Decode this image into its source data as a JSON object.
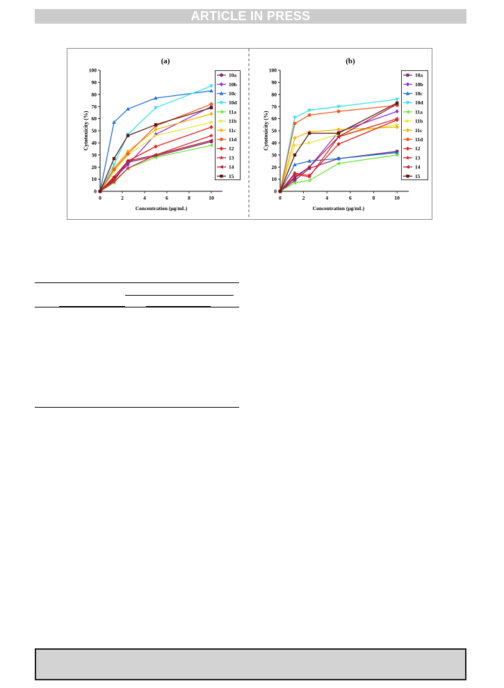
{
  "header": {
    "banner_text": "ARTICLE IN PRESS"
  },
  "chart_data": [
    {
      "type": "line",
      "title": "(a)",
      "xlabel": "Concentration (μg/mL)",
      "ylabel": "Cytotoxicity (%)",
      "x": [
        0,
        1.25,
        2.5,
        5,
        10
      ],
      "xlim": [
        0,
        11
      ],
      "ylim": [
        0,
        100
      ],
      "xticks": [
        0,
        2,
        4,
        6,
        8,
        10
      ],
      "yticks": [
        0,
        10,
        20,
        30,
        40,
        50,
        60,
        70,
        80,
        90,
        100
      ],
      "grid": false,
      "legend": "right",
      "series": [
        {
          "name": "10a",
          "color": "#7a2a6e",
          "marker": "circle",
          "values": [
            0,
            9,
            24,
            29,
            41
          ]
        },
        {
          "name": "10b",
          "color": "#8a2be2",
          "marker": "diamond",
          "values": [
            0,
            11,
            22,
            47,
            70
          ]
        },
        {
          "name": "10c",
          "color": "#1f6fd8",
          "marker": "triangle-up",
          "values": [
            0,
            57,
            68,
            77,
            83
          ]
        },
        {
          "name": "10d",
          "color": "#2fe3ea",
          "marker": "triangle-down",
          "values": [
            0,
            22,
            47,
            69,
            87
          ]
        },
        {
          "name": "11a",
          "color": "#6fe23c",
          "marker": "triangle-left",
          "values": [
            0,
            7,
            19,
            28,
            38
          ]
        },
        {
          "name": "11b",
          "color": "#e6e63a",
          "marker": "triangle-right",
          "values": [
            0,
            16,
            30,
            46,
            57
          ]
        },
        {
          "name": "11c",
          "color": "#f5b400",
          "marker": "diamond",
          "values": [
            0,
            19,
            33,
            51,
            64
          ]
        },
        {
          "name": "11d",
          "color": "#f05a1f",
          "marker": "circle",
          "values": [
            0,
            18,
            31,
            54,
            72
          ]
        },
        {
          "name": "12",
          "color": "#e81c1c",
          "marker": "diamond",
          "values": [
            0,
            10,
            25,
            37,
            53
          ]
        },
        {
          "name": "13",
          "color": "#d22432",
          "marker": "star",
          "values": [
            0,
            8,
            19,
            30,
            46
          ]
        },
        {
          "name": "14",
          "color": "#b01d2c",
          "marker": "triangle-left",
          "values": [
            0,
            12,
            25,
            30,
            42
          ]
        },
        {
          "name": "15",
          "color": "#5a1510",
          "marker": "square",
          "values": [
            0,
            27,
            46,
            55,
            69
          ]
        }
      ]
    },
    {
      "type": "line",
      "title": "(b)",
      "xlabel": "Concentration (μg/mL)",
      "ylabel": "Cytotoxicity (%)",
      "x": [
        0,
        1.25,
        2.5,
        5,
        10
      ],
      "xlim": [
        0,
        11
      ],
      "ylim": [
        0,
        100
      ],
      "xticks": [
        0,
        2,
        4,
        6,
        8,
        10
      ],
      "yticks": [
        0,
        10,
        20,
        30,
        40,
        50,
        60,
        70,
        80,
        90,
        100
      ],
      "grid": false,
      "legend": "right",
      "series": [
        {
          "name": "10a",
          "color": "#7a2a6e",
          "marker": "circle",
          "values": [
            0,
            9,
            19,
            27,
            33
          ]
        },
        {
          "name": "10b",
          "color": "#8a2be2",
          "marker": "diamond",
          "values": [
            0,
            12,
            20,
            49,
            66
          ]
        },
        {
          "name": "10c",
          "color": "#1f6fd8",
          "marker": "triangle-up",
          "values": [
            0,
            22,
            25,
            27,
            32
          ]
        },
        {
          "name": "10d",
          "color": "#2fe3ea",
          "marker": "triangle-down",
          "values": [
            0,
            61,
            67,
            70,
            76
          ]
        },
        {
          "name": "11a",
          "color": "#6fe23c",
          "marker": "triangle-left",
          "values": [
            0,
            7,
            9,
            23,
            30
          ]
        },
        {
          "name": "11b",
          "color": "#e6e63a",
          "marker": "triangle-right",
          "values": [
            0,
            38,
            40,
            47,
            55
          ]
        },
        {
          "name": "11c",
          "color": "#f5b400",
          "marker": "diamond",
          "values": [
            0,
            44,
            49,
            51,
            53
          ]
        },
        {
          "name": "11d",
          "color": "#f05a1f",
          "marker": "circle",
          "values": [
            0,
            56,
            63,
            66,
            71
          ]
        },
        {
          "name": "12",
          "color": "#e81c1c",
          "marker": "diamond",
          "values": [
            0,
            15,
            13,
            39,
            59
          ]
        },
        {
          "name": "13",
          "color": "#d22432",
          "marker": "star",
          "values": [
            0,
            14,
            12,
            45,
            60
          ]
        },
        {
          "name": "14",
          "color": "#b01d2c",
          "marker": "triangle-left",
          "values": [
            0,
            11,
            20,
            45,
            72
          ]
        },
        {
          "name": "15",
          "color": "#5a1510",
          "marker": "square",
          "values": [
            0,
            30,
            48,
            48,
            73
          ]
        }
      ]
    }
  ]
}
